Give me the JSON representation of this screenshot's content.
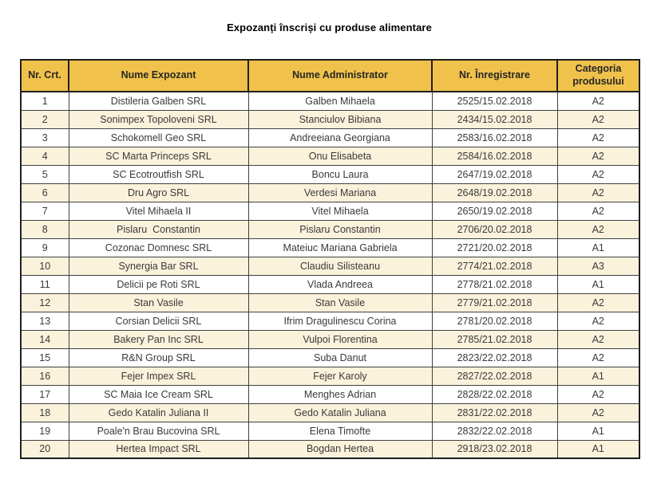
{
  "title": "Expozanți înscriși cu produse alimentare",
  "table": {
    "columns": [
      {
        "key": "nr-crt",
        "label": "Nr. Crt."
      },
      {
        "key": "nume-expozant",
        "label": "Nume Expozant"
      },
      {
        "key": "nume-administrator",
        "label": "Nume Administrator"
      },
      {
        "key": "nr-inregistrare",
        "label": "Nr. Înregistrare"
      },
      {
        "key": "categoria-produsului",
        "label": "Categoria produsului"
      }
    ],
    "rows": [
      [
        "1",
        "Distileria Galben SRL",
        "Galben Mihaela",
        "2525/15.02.2018",
        "A2"
      ],
      [
        "2",
        "Sonimpex Topoloveni SRL",
        "Stanciulov Bibiana",
        "2434/15.02.2018",
        "A2"
      ],
      [
        "3",
        "Schokomell Geo SRL",
        "Andreeiana Georgiana",
        "2583/16.02.2018",
        "A2"
      ],
      [
        "4",
        "SC Marta Princeps SRL",
        "Onu Elisabeta",
        "2584/16.02.2018",
        "A2"
      ],
      [
        "5",
        "SC Ecotroutfish SRL",
        "Boncu Laura",
        "2647/19.02.2018",
        "A2"
      ],
      [
        "6",
        "Dru Agro SRL",
        "Verdesi Mariana",
        "2648/19.02.2018",
        "A2"
      ],
      [
        "7",
        "Vitel Mihaela II",
        "Vitel Mihaela",
        "2650/19.02.2018",
        "A2"
      ],
      [
        "8",
        "Pislaru  Constantin",
        "Pislaru Constantin",
        "2706/20.02.2018",
        "A2"
      ],
      [
        "9",
        "Cozonac Domnesc SRL",
        "Mateiuc Mariana Gabriela",
        "2721/20.02.2018",
        "A1"
      ],
      [
        "10",
        "Synergia Bar SRL",
        "Claudiu Silisteanu",
        "2774/21.02.2018",
        "A3"
      ],
      [
        "11",
        "Delicii pe Roti SRL",
        "Vlada Andreea",
        "2778/21.02.2018",
        "A1"
      ],
      [
        "12",
        "Stan Vasile",
        "Stan Vasile",
        "2779/21.02.2018",
        "A2"
      ],
      [
        "13",
        "Corsian Delicii SRL",
        "Ifrim Dragulinescu Corina",
        "2781/20.02.2018",
        "A2"
      ],
      [
        "14",
        "Bakery Pan Inc SRL",
        "Vulpoi Florentina",
        "2785/21.02.2018",
        "A2"
      ],
      [
        "15",
        "R&N Group SRL",
        "Suba Danut",
        "2823/22.02.2018",
        "A2"
      ],
      [
        "16",
        "Fejer Impex SRL",
        "Fejer Karoly",
        "2827/22.02.2018",
        "A1"
      ],
      [
        "17",
        "SC Maia Ice Cream SRL",
        "Menghes Adrian",
        "2828/22.02.2018",
        "A2"
      ],
      [
        "18",
        "Gedo Katalin Juliana II",
        "Gedo Katalin Juliana",
        "2831/22.02.2018",
        "A2"
      ],
      [
        "19",
        "Poale'n Brau Bucovina SRL",
        "Elena Timofte",
        "2832/22.02.2018",
        "A1"
      ],
      [
        "20",
        "Hertea Impact SRL",
        "Bogdan Hertea",
        "2918/23.02.2018",
        "A1"
      ]
    ]
  },
  "colors": {
    "header_bg": "#F0C24B",
    "row_bg": "#FFFFFF",
    "row_alt_bg": "#FBF2DC",
    "border": "#404040",
    "border_strong": "#1F1F1F",
    "text": "#3A3A3A",
    "header_text": "#262626",
    "title_text": "#000000"
  }
}
